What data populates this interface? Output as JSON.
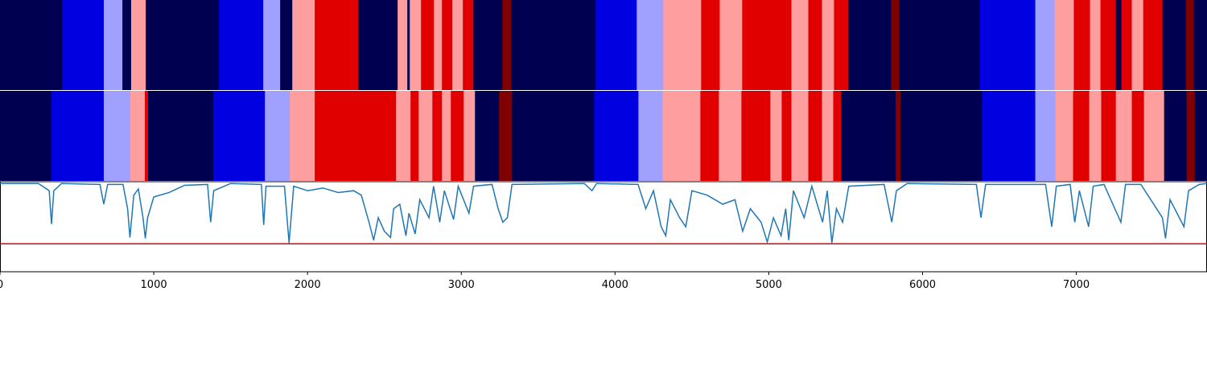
{
  "chart_data": {
    "type": "segmentation",
    "xlim": [
      0,
      7850
    ],
    "xticks": [
      0,
      1000,
      2000,
      3000,
      4000,
      5000,
      6000,
      7000
    ],
    "rows": [
      {
        "edges": [
          0,
          403,
          675,
          796,
          853,
          948,
          1424,
          1712,
          1822,
          1901,
          2047,
          2330,
          2586,
          2649,
          2665,
          2738,
          2822,
          2874,
          2942,
          3010,
          3079,
          3267,
          3325,
          3874,
          4141,
          4314,
          4560,
          4681,
          4827,
          5147,
          5257,
          5346,
          5424,
          5518,
          5796,
          5848,
          6372,
          6733,
          6859,
          6984,
          7089,
          7157,
          7257,
          7293,
          7361,
          7435,
          7560,
          7712,
          7764,
          7850
        ],
        "colors": [
          "#000050",
          "#0000e0",
          "#a0a0ff",
          "#000050",
          "#ff9e9e",
          "#000050",
          "#0000e0",
          "#a0a0ff",
          "#000050",
          "#ff9e9e",
          "#e00000",
          "#000050",
          "#ff9e9e",
          "#000050",
          "#ff9e9e",
          "#e00000",
          "#ff9e9e",
          "#e00000",
          "#ff9e9e",
          "#e00000",
          "#000050",
          "#800000",
          "#000050",
          "#0000e0",
          "#a0a0ff",
          "#ff9e9e",
          "#e00000",
          "#ff9e9e",
          "#e00000",
          "#ff9e9e",
          "#e00000",
          "#ff9e9e",
          "#e00000",
          "#000050",
          "#800000",
          "#000050",
          "#0000e0",
          "#a0a0ff",
          "#ff9e9e",
          "#e00000",
          "#ff9e9e",
          "#e00000",
          "#000050",
          "#e00000",
          "#ff9e9e",
          "#e00000",
          "#000050",
          "#800000",
          "#000050"
        ]
      },
      {
        "edges": [
          0,
          335,
          675,
          848,
          942,
          963,
          1387,
          1723,
          1885,
          2047,
          2576,
          2670,
          2723,
          2812,
          2874,
          2932,
          3016,
          3089,
          3246,
          3330,
          3864,
          4152,
          4309,
          4555,
          4675,
          4822,
          5010,
          5084,
          5147,
          5257,
          5346,
          5419,
          5471,
          5825,
          5856,
          6387,
          6733,
          6864,
          6979,
          7084,
          7162,
          7257,
          7361,
          7440,
          7571,
          7717,
          7770,
          7850
        ],
        "colors": [
          "#000050",
          "#0000e0",
          "#a0a0ff",
          "#ff9e9e",
          "#e00000",
          "#000050",
          "#0000e0",
          "#a0a0ff",
          "#ff9e9e",
          "#e00000",
          "#ff9e9e",
          "#e00000",
          "#ff9e9e",
          "#e00000",
          "#ff9e9e",
          "#e00000",
          "#ff9e9e",
          "#000050",
          "#800000",
          "#000050",
          "#0000e0",
          "#a0a0ff",
          "#ff9e9e",
          "#e00000",
          "#ff9e9e",
          "#e00000",
          "#ff9e9e",
          "#e00000",
          "#ff9e9e",
          "#e00000",
          "#ff9e9e",
          "#e00000",
          "#000050",
          "#800000",
          "#000050",
          "#0000e0",
          "#a0a0ff",
          "#ff9e9e",
          "#e00000",
          "#ff9e9e",
          "#e00000",
          "#ff9e9e",
          "#e00000",
          "#ff9e9e",
          "#000050",
          "#800000",
          "#000050"
        ]
      }
    ],
    "ylim": [
      0,
      1
    ],
    "threshold": 0.31,
    "threshold_color": "#e00000",
    "series": [
      {
        "color": "#1f77b4",
        "x": [
          0,
          250,
          320,
          335,
          350,
          400,
          650,
          675,
          700,
          800,
          830,
          845,
          870,
          900,
          930,
          945,
          960,
          1000,
          1100,
          1200,
          1350,
          1370,
          1390,
          1500,
          1700,
          1715,
          1730,
          1850,
          1880,
          1910,
          2000,
          2100,
          2200,
          2300,
          2350,
          2400,
          2430,
          2460,
          2500,
          2540,
          2560,
          2600,
          2640,
          2660,
          2700,
          2730,
          2790,
          2820,
          2860,
          2890,
          2950,
          2980,
          3050,
          3080,
          3200,
          3240,
          3270,
          3300,
          3330,
          3800,
          3850,
          3880,
          4150,
          4200,
          4250,
          4300,
          4330,
          4360,
          4420,
          4460,
          4500,
          4600,
          4700,
          4780,
          4830,
          4880,
          4950,
          4990,
          5030,
          5080,
          5110,
          5130,
          5160,
          5230,
          5280,
          5350,
          5380,
          5410,
          5440,
          5480,
          5520,
          5750,
          5800,
          5830,
          5900,
          6350,
          6380,
          6410,
          6800,
          6840,
          6870,
          6960,
          6990,
          7020,
          7080,
          7110,
          7180,
          7290,
          7320,
          7420,
          7560,
          7580,
          7610,
          7700,
          7730,
          7800,
          7850
        ],
        "values": [
          0.98,
          0.98,
          0.9,
          0.53,
          0.9,
          0.98,
          0.97,
          0.75,
          0.97,
          0.97,
          0.7,
          0.38,
          0.85,
          0.92,
          0.6,
          0.37,
          0.6,
          0.83,
          0.88,
          0.96,
          0.97,
          0.55,
          0.9,
          0.98,
          0.97,
          0.52,
          0.95,
          0.95,
          0.32,
          0.95,
          0.9,
          0.93,
          0.88,
          0.9,
          0.85,
          0.55,
          0.35,
          0.6,
          0.45,
          0.38,
          0.7,
          0.75,
          0.4,
          0.65,
          0.42,
          0.8,
          0.6,
          0.95,
          0.55,
          0.9,
          0.58,
          0.95,
          0.65,
          0.95,
          0.97,
          0.7,
          0.55,
          0.6,
          0.97,
          0.98,
          0.9,
          0.98,
          0.97,
          0.7,
          0.9,
          0.5,
          0.4,
          0.8,
          0.6,
          0.5,
          0.9,
          0.85,
          0.75,
          0.8,
          0.45,
          0.7,
          0.55,
          0.33,
          0.6,
          0.4,
          0.7,
          0.35,
          0.9,
          0.6,
          0.95,
          0.55,
          0.9,
          0.32,
          0.7,
          0.55,
          0.95,
          0.97,
          0.55,
          0.9,
          0.98,
          0.97,
          0.6,
          0.97,
          0.97,
          0.5,
          0.95,
          0.97,
          0.55,
          0.9,
          0.5,
          0.95,
          0.97,
          0.55,
          0.97,
          0.97,
          0.6,
          0.37,
          0.8,
          0.5,
          0.9,
          0.97,
          0.98
        ]
      }
    ]
  }
}
